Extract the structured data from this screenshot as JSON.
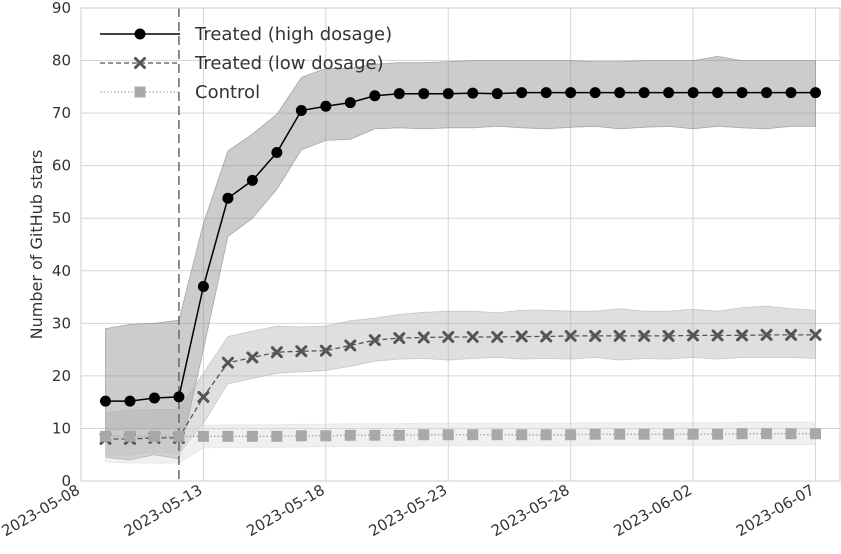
{
  "chart_data": {
    "type": "line",
    "xlabel": "",
    "ylabel": "Number of GitHub stars",
    "ylim": [
      0,
      90
    ],
    "xlim": [
      "2023-05-08",
      "2023-06-08"
    ],
    "grid": true,
    "legend_position": "top-left",
    "intervention_date": "2023-05-12",
    "y_ticks": [
      0,
      10,
      20,
      30,
      40,
      50,
      60,
      70,
      80,
      90
    ],
    "x_ticks": [
      "2023-05-08",
      "2023-05-13",
      "2023-05-18",
      "2023-05-23",
      "2023-05-28",
      "2023-06-02",
      "2023-06-07"
    ],
    "x": [
      "2023-05-09",
      "2023-05-10",
      "2023-05-11",
      "2023-05-12",
      "2023-05-13",
      "2023-05-14",
      "2023-05-15",
      "2023-05-16",
      "2023-05-17",
      "2023-05-18",
      "2023-05-19",
      "2023-05-20",
      "2023-05-21",
      "2023-05-22",
      "2023-05-23",
      "2023-05-24",
      "2023-05-25",
      "2023-05-26",
      "2023-05-27",
      "2023-05-28",
      "2023-05-29",
      "2023-05-30",
      "2023-05-31",
      "2023-06-01",
      "2023-06-02",
      "2023-06-03",
      "2023-06-04",
      "2023-06-05",
      "2023-06-06",
      "2023-06-07"
    ],
    "series": [
      {
        "name": "Treated (high dosage)",
        "color": "#000000",
        "marker": "circle",
        "line_style": "solid",
        "band_color": "#7f7f7f",
        "values": [
          15.2,
          15.2,
          15.8,
          16.0,
          37.0,
          53.8,
          57.2,
          62.5,
          70.5,
          71.3,
          72.0,
          73.3,
          73.7,
          73.7,
          73.7,
          73.8,
          73.7,
          73.9,
          73.9,
          73.9,
          73.9,
          73.9,
          73.9,
          73.9,
          73.9,
          73.9,
          73.9,
          73.9,
          73.9,
          73.9
        ],
        "ci_lower": [
          4.5,
          4.0,
          5.0,
          4.2,
          25.0,
          46.5,
          50.0,
          55.5,
          63.0,
          64.8,
          65.0,
          67.0,
          67.2,
          67.0,
          67.2,
          67.2,
          67.5,
          67.2,
          67.0,
          67.3,
          67.5,
          67.0,
          67.3,
          67.5,
          67.0,
          67.5,
          67.2,
          67.0,
          67.5,
          67.5
        ],
        "ci_upper": [
          29.0,
          29.8,
          30.0,
          30.6,
          49.0,
          62.8,
          66.0,
          69.8,
          76.8,
          78.5,
          78.5,
          79.3,
          79.6,
          79.6,
          79.8,
          80.0,
          80.0,
          80.0,
          80.0,
          80.0,
          79.8,
          79.8,
          80.0,
          80.0,
          80.0,
          80.8,
          80.0,
          80.0,
          80.0,
          80.0
        ]
      },
      {
        "name": "Treated (low dosage)",
        "color": "#555555",
        "marker": "x",
        "line_style": "dashed",
        "band_color": "#b0b0b0",
        "values": [
          8.0,
          8.0,
          8.2,
          8.2,
          16.0,
          22.5,
          23.5,
          24.5,
          24.7,
          24.8,
          25.8,
          26.8,
          27.2,
          27.3,
          27.4,
          27.4,
          27.4,
          27.5,
          27.5,
          27.6,
          27.6,
          27.6,
          27.6,
          27.6,
          27.7,
          27.7,
          27.7,
          27.8,
          27.8,
          27.8
        ],
        "ci_lower": [
          5.0,
          5.0,
          5.5,
          5.2,
          11.0,
          18.5,
          19.5,
          20.5,
          20.8,
          21.0,
          21.8,
          22.8,
          23.2,
          23.3,
          23.0,
          23.3,
          23.5,
          23.2,
          23.3,
          23.2,
          23.5,
          23.0,
          23.3,
          23.2,
          23.5,
          23.2,
          23.5,
          23.5,
          23.5,
          23.3
        ],
        "ci_upper": [
          13.0,
          13.5,
          13.6,
          13.6,
          20.5,
          27.5,
          28.5,
          29.5,
          29.3,
          29.5,
          30.5,
          31.0,
          31.7,
          32.1,
          32.3,
          32.3,
          32.0,
          32.5,
          32.5,
          32.3,
          32.3,
          32.8,
          32.3,
          32.3,
          32.7,
          32.3,
          33.0,
          33.3,
          32.8,
          32.5
        ]
      },
      {
        "name": "Control",
        "color": "#a8a8a8",
        "marker": "square",
        "line_style": "dotted",
        "band_color": "#dadada",
        "values": [
          8.5,
          8.5,
          8.5,
          8.5,
          8.5,
          8.5,
          8.5,
          8.5,
          8.6,
          8.6,
          8.7,
          8.7,
          8.7,
          8.8,
          8.8,
          8.8,
          8.8,
          8.8,
          8.8,
          8.8,
          8.9,
          8.9,
          8.9,
          8.9,
          8.9,
          8.9,
          9.0,
          9.0,
          9.0,
          9.0
        ],
        "ci_lower": [
          3.6,
          3.4,
          3.4,
          3.4,
          6.3,
          6.4,
          6.4,
          6.4,
          6.5,
          6.5,
          6.6,
          6.6,
          6.6,
          6.7,
          6.7,
          6.7,
          6.7,
          6.7,
          6.7,
          6.7,
          6.8,
          6.8,
          6.8,
          6.8,
          6.8,
          6.8,
          6.9,
          6.9,
          6.9,
          6.9
        ],
        "ci_upper": [
          9.5,
          9.5,
          9.6,
          9.6,
          10.6,
          10.7,
          10.7,
          10.7,
          10.8,
          10.8,
          10.9,
          10.9,
          10.9,
          11.0,
          11.0,
          11.0,
          11.0,
          11.0,
          11.0,
          11.0,
          11.1,
          11.1,
          11.1,
          11.1,
          11.1,
          11.1,
          11.2,
          11.2,
          11.2,
          11.2
        ]
      }
    ]
  },
  "colors": {
    "grid": "#d6d6d6",
    "axes_edge": "#cccccc",
    "vline": "#666666",
    "text": "#333333"
  }
}
